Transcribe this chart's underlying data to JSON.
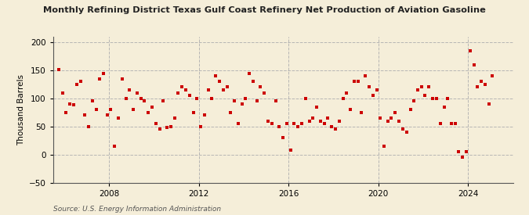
{
  "title": "Monthly Refining District Texas Gulf Coast Refinery Net Production of Aviation Gasoline",
  "ylabel": "Thousand Barrels",
  "source": "Source: U.S. Energy Information Administration",
  "ylim": [
    -50,
    210
  ],
  "yticks": [
    -50,
    0,
    50,
    100,
    150,
    200
  ],
  "xlim": [
    2005.5,
    2026.0
  ],
  "xticks": [
    2008,
    2012,
    2016,
    2020,
    2024
  ],
  "background_color": "#f5eed9",
  "grid_color": "#b0b0b0",
  "marker_color": "#cc0000",
  "marker_size": 9,
  "data_points": [
    [
      2005.75,
      151
    ],
    [
      2005.92,
      110
    ],
    [
      2006.08,
      75
    ],
    [
      2006.25,
      90
    ],
    [
      2006.42,
      88
    ],
    [
      2006.58,
      125
    ],
    [
      2006.75,
      130
    ],
    [
      2006.92,
      70
    ],
    [
      2007.08,
      50
    ],
    [
      2007.25,
      95
    ],
    [
      2007.42,
      80
    ],
    [
      2007.58,
      135
    ],
    [
      2007.75,
      145
    ],
    [
      2007.92,
      70
    ],
    [
      2008.08,
      80
    ],
    [
      2008.25,
      15
    ],
    [
      2008.42,
      65
    ],
    [
      2008.58,
      135
    ],
    [
      2008.75,
      100
    ],
    [
      2008.92,
      115
    ],
    [
      2009.08,
      80
    ],
    [
      2009.25,
      110
    ],
    [
      2009.42,
      100
    ],
    [
      2009.58,
      95
    ],
    [
      2009.75,
      75
    ],
    [
      2009.92,
      85
    ],
    [
      2010.08,
      55
    ],
    [
      2010.25,
      45
    ],
    [
      2010.42,
      95
    ],
    [
      2010.58,
      48
    ],
    [
      2010.75,
      50
    ],
    [
      2010.92,
      65
    ],
    [
      2011.08,
      110
    ],
    [
      2011.25,
      120
    ],
    [
      2011.42,
      115
    ],
    [
      2011.58,
      105
    ],
    [
      2011.75,
      75
    ],
    [
      2011.92,
      100
    ],
    [
      2012.08,
      50
    ],
    [
      2012.25,
      70
    ],
    [
      2012.42,
      115
    ],
    [
      2012.58,
      100
    ],
    [
      2012.75,
      140
    ],
    [
      2012.92,
      130
    ],
    [
      2013.08,
      115
    ],
    [
      2013.25,
      120
    ],
    [
      2013.42,
      75
    ],
    [
      2013.58,
      95
    ],
    [
      2013.75,
      55
    ],
    [
      2013.92,
      90
    ],
    [
      2014.08,
      100
    ],
    [
      2014.25,
      145
    ],
    [
      2014.42,
      130
    ],
    [
      2014.58,
      95
    ],
    [
      2014.75,
      120
    ],
    [
      2014.92,
      110
    ],
    [
      2015.08,
      60
    ],
    [
      2015.25,
      55
    ],
    [
      2015.42,
      95
    ],
    [
      2015.58,
      50
    ],
    [
      2015.75,
      30
    ],
    [
      2015.92,
      55
    ],
    [
      2016.08,
      8
    ],
    [
      2016.25,
      55
    ],
    [
      2016.42,
      50
    ],
    [
      2016.58,
      55
    ],
    [
      2016.75,
      100
    ],
    [
      2016.92,
      60
    ],
    [
      2017.08,
      65
    ],
    [
      2017.25,
      85
    ],
    [
      2017.42,
      60
    ],
    [
      2017.58,
      55
    ],
    [
      2017.75,
      65
    ],
    [
      2017.92,
      50
    ],
    [
      2018.08,
      45
    ],
    [
      2018.25,
      60
    ],
    [
      2018.42,
      100
    ],
    [
      2018.58,
      110
    ],
    [
      2018.75,
      80
    ],
    [
      2018.92,
      130
    ],
    [
      2019.08,
      130
    ],
    [
      2019.25,
      75
    ],
    [
      2019.42,
      140
    ],
    [
      2019.58,
      120
    ],
    [
      2019.75,
      105
    ],
    [
      2019.92,
      115
    ],
    [
      2020.08,
      65
    ],
    [
      2020.25,
      15
    ],
    [
      2020.42,
      60
    ],
    [
      2020.58,
      65
    ],
    [
      2020.75,
      75
    ],
    [
      2020.92,
      60
    ],
    [
      2021.08,
      45
    ],
    [
      2021.25,
      40
    ],
    [
      2021.42,
      80
    ],
    [
      2021.58,
      95
    ],
    [
      2021.75,
      115
    ],
    [
      2021.92,
      120
    ],
    [
      2022.08,
      105
    ],
    [
      2022.25,
      120
    ],
    [
      2022.42,
      100
    ],
    [
      2022.58,
      100
    ],
    [
      2022.75,
      55
    ],
    [
      2022.92,
      85
    ],
    [
      2023.08,
      100
    ],
    [
      2023.25,
      55
    ],
    [
      2023.42,
      55
    ],
    [
      2023.58,
      5
    ],
    [
      2023.75,
      -5
    ],
    [
      2023.92,
      5
    ],
    [
      2024.08,
      185
    ],
    [
      2024.25,
      160
    ],
    [
      2024.42,
      120
    ],
    [
      2024.58,
      130
    ],
    [
      2024.75,
      125
    ],
    [
      2024.92,
      90
    ],
    [
      2025.08,
      140
    ]
  ]
}
